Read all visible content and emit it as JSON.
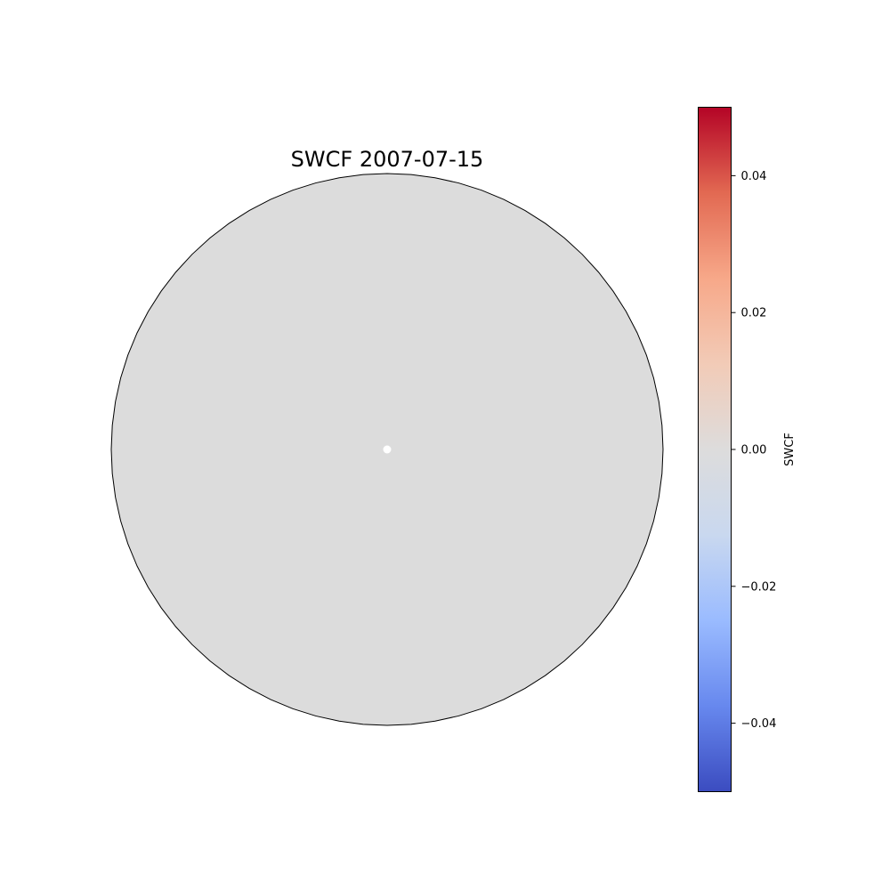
{
  "chart_data": {
    "type": "heatmap",
    "projection": "polar-disk",
    "title": "SWCF 2007-07-15",
    "field_value": 0.0,
    "field_color": "#dcdcdc",
    "missing_center_color": "#ffffff",
    "colorbar": {
      "label": "SWCF",
      "range": [
        -0.05,
        0.05
      ],
      "colormap": "coolwarm",
      "stops": [
        "#3b4cc0",
        "#6788ee",
        "#9abbff",
        "#c9d8ef",
        "#dddcdc",
        "#f2cbb7",
        "#f7a889",
        "#e26952",
        "#b40426"
      ],
      "ticks": [
        {
          "value": -0.04,
          "label": "−0.04"
        },
        {
          "value": -0.02,
          "label": "−0.02"
        },
        {
          "value": 0.0,
          "label": "0.00"
        },
        {
          "value": 0.02,
          "label": "0.02"
        },
        {
          "value": 0.04,
          "label": "0.04"
        }
      ]
    }
  }
}
